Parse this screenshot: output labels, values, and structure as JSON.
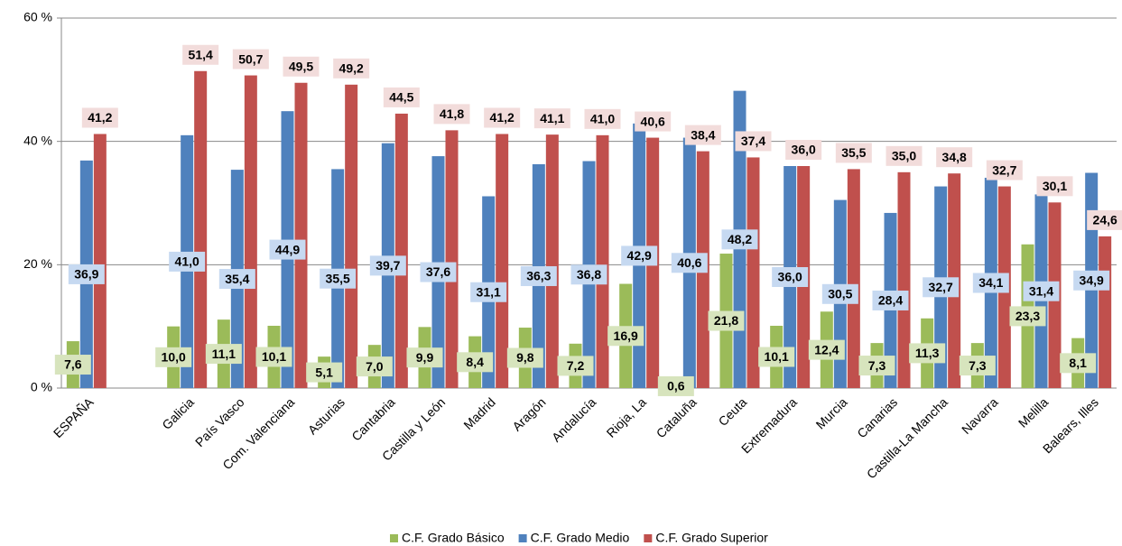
{
  "chart_data": {
    "type": "bar",
    "categories": [
      "ESPAÑA",
      null,
      "Galicia",
      "País Vasco",
      "Com. Valenciana",
      "Asturias",
      "Cantabria",
      "Castilla y León",
      "Madrid",
      "Aragón",
      "Andalucía",
      "Rioja, La",
      "Cataluña",
      "Ceuta",
      "Extremadura",
      "Murcia",
      "Canarias",
      "Castilla-La Mancha",
      "Navarra",
      "Melilla",
      "Balears, Illes"
    ],
    "series": [
      {
        "name": "C.F. Grado Básico",
        "color": "#9bbb59",
        "label_bg": "#d7e4bd",
        "values": [
          7.6,
          null,
          10.0,
          11.1,
          10.1,
          5.1,
          7.0,
          9.9,
          8.4,
          9.8,
          7.2,
          16.9,
          0.6,
          21.8,
          10.1,
          12.4,
          7.3,
          11.3,
          7.3,
          23.3,
          8.1
        ],
        "value_labels": [
          "7,6",
          null,
          "10,0",
          "11,1",
          "10,1",
          "5,1",
          "7,0",
          "9,9",
          "8,4",
          "9,8",
          "7,2",
          "16,9",
          "0,6",
          "21,8",
          "10,1",
          "12,4",
          "7,3",
          "11,3",
          "7,3",
          "23,3",
          "8,1"
        ]
      },
      {
        "name": "C.F. Grado Medio",
        "color": "#4f81bd",
        "label_bg": "#c6d9f1",
        "values": [
          36.9,
          null,
          41.0,
          35.4,
          44.9,
          35.5,
          39.7,
          37.6,
          31.1,
          36.3,
          36.8,
          42.9,
          40.6,
          48.2,
          36.0,
          30.5,
          28.4,
          32.7,
          34.1,
          31.4,
          34.9
        ],
        "value_labels": [
          "36,9",
          null,
          "41,0",
          "35,4",
          "44,9",
          "35,5",
          "39,7",
          "37,6",
          "31,1",
          "36,3",
          "36,8",
          "42,9",
          "40,6",
          "48,2",
          "36,0",
          "30,5",
          "28,4",
          "32,7",
          "34,1",
          "31,4",
          "34,9"
        ]
      },
      {
        "name": "C.F. Grado Superior",
        "color": "#c0504d",
        "label_bg": "#f2dcdb",
        "values": [
          41.2,
          null,
          51.4,
          50.7,
          49.5,
          49.2,
          44.5,
          41.8,
          41.2,
          41.1,
          41.0,
          40.6,
          38.4,
          37.4,
          36.0,
          35.5,
          35.0,
          34.8,
          32.7,
          30.1,
          24.6
        ],
        "value_labels": [
          "41,2",
          null,
          "51,4",
          "50,7",
          "49,5",
          "49,2",
          "44,5",
          "41,8",
          "41,2",
          "41,1",
          "41,0",
          "40,6",
          "38,4",
          "37,4",
          "36,0",
          "35,5",
          "35,0",
          "34,8",
          "32,7",
          "30,1",
          "24,6"
        ]
      }
    ],
    "ylim": [
      0,
      60
    ],
    "yticks": [
      {
        "value": 0,
        "label": "0 %"
      },
      {
        "value": 20,
        "label": "20 %"
      },
      {
        "value": 40,
        "label": "40 %"
      },
      {
        "value": 60,
        "label": "60 %"
      }
    ],
    "grid": true
  }
}
